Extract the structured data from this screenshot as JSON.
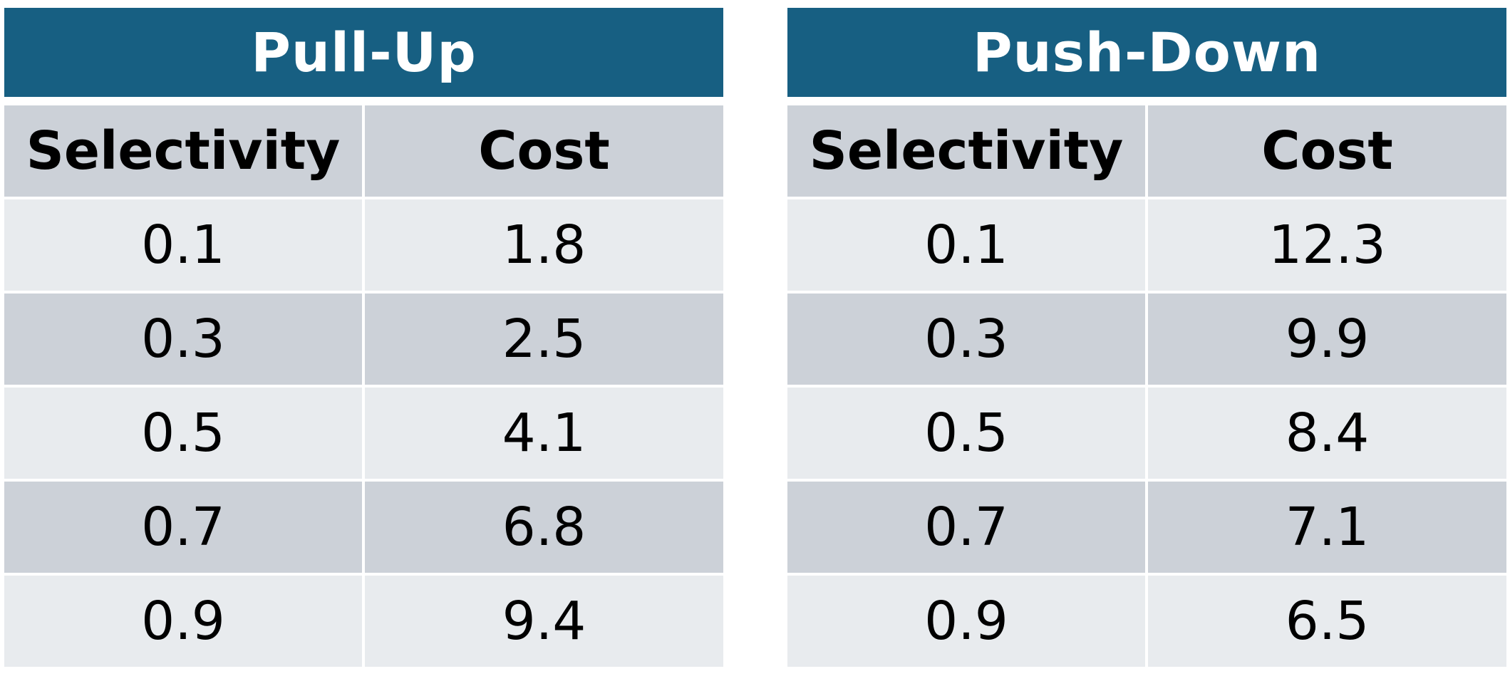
{
  "chart_data": [
    {
      "type": "table",
      "title": "Pull-Up",
      "columns": [
        "Selectivity",
        "Cost"
      ],
      "rows": [
        [
          "0.1",
          "1.8"
        ],
        [
          "0.3",
          "2.5"
        ],
        [
          "0.5",
          "4.1"
        ],
        [
          "0.7",
          "6.8"
        ],
        [
          "0.9",
          "9.4"
        ]
      ],
      "x": [
        0.1,
        0.3,
        0.5,
        0.7,
        0.9
      ],
      "values": [
        1.8,
        2.5,
        4.1,
        6.8,
        9.4
      ]
    },
    {
      "type": "table",
      "title": "Push-Down",
      "columns": [
        "Selectivity",
        "Cost"
      ],
      "rows": [
        [
          "0.1",
          "12.3"
        ],
        [
          "0.3",
          "9.9"
        ],
        [
          "0.5",
          "8.4"
        ],
        [
          "0.7",
          "7.1"
        ],
        [
          "0.9",
          "6.5"
        ]
      ],
      "x": [
        0.1,
        0.3,
        0.5,
        0.7,
        0.9
      ],
      "values": [
        12.3,
        9.9,
        8.4,
        7.1,
        6.5
      ]
    }
  ],
  "colors": {
    "title_bar": "#175f82",
    "title_text": "#ffffff",
    "row_dark": "#ccd1d8",
    "row_light": "#e8ebee"
  }
}
